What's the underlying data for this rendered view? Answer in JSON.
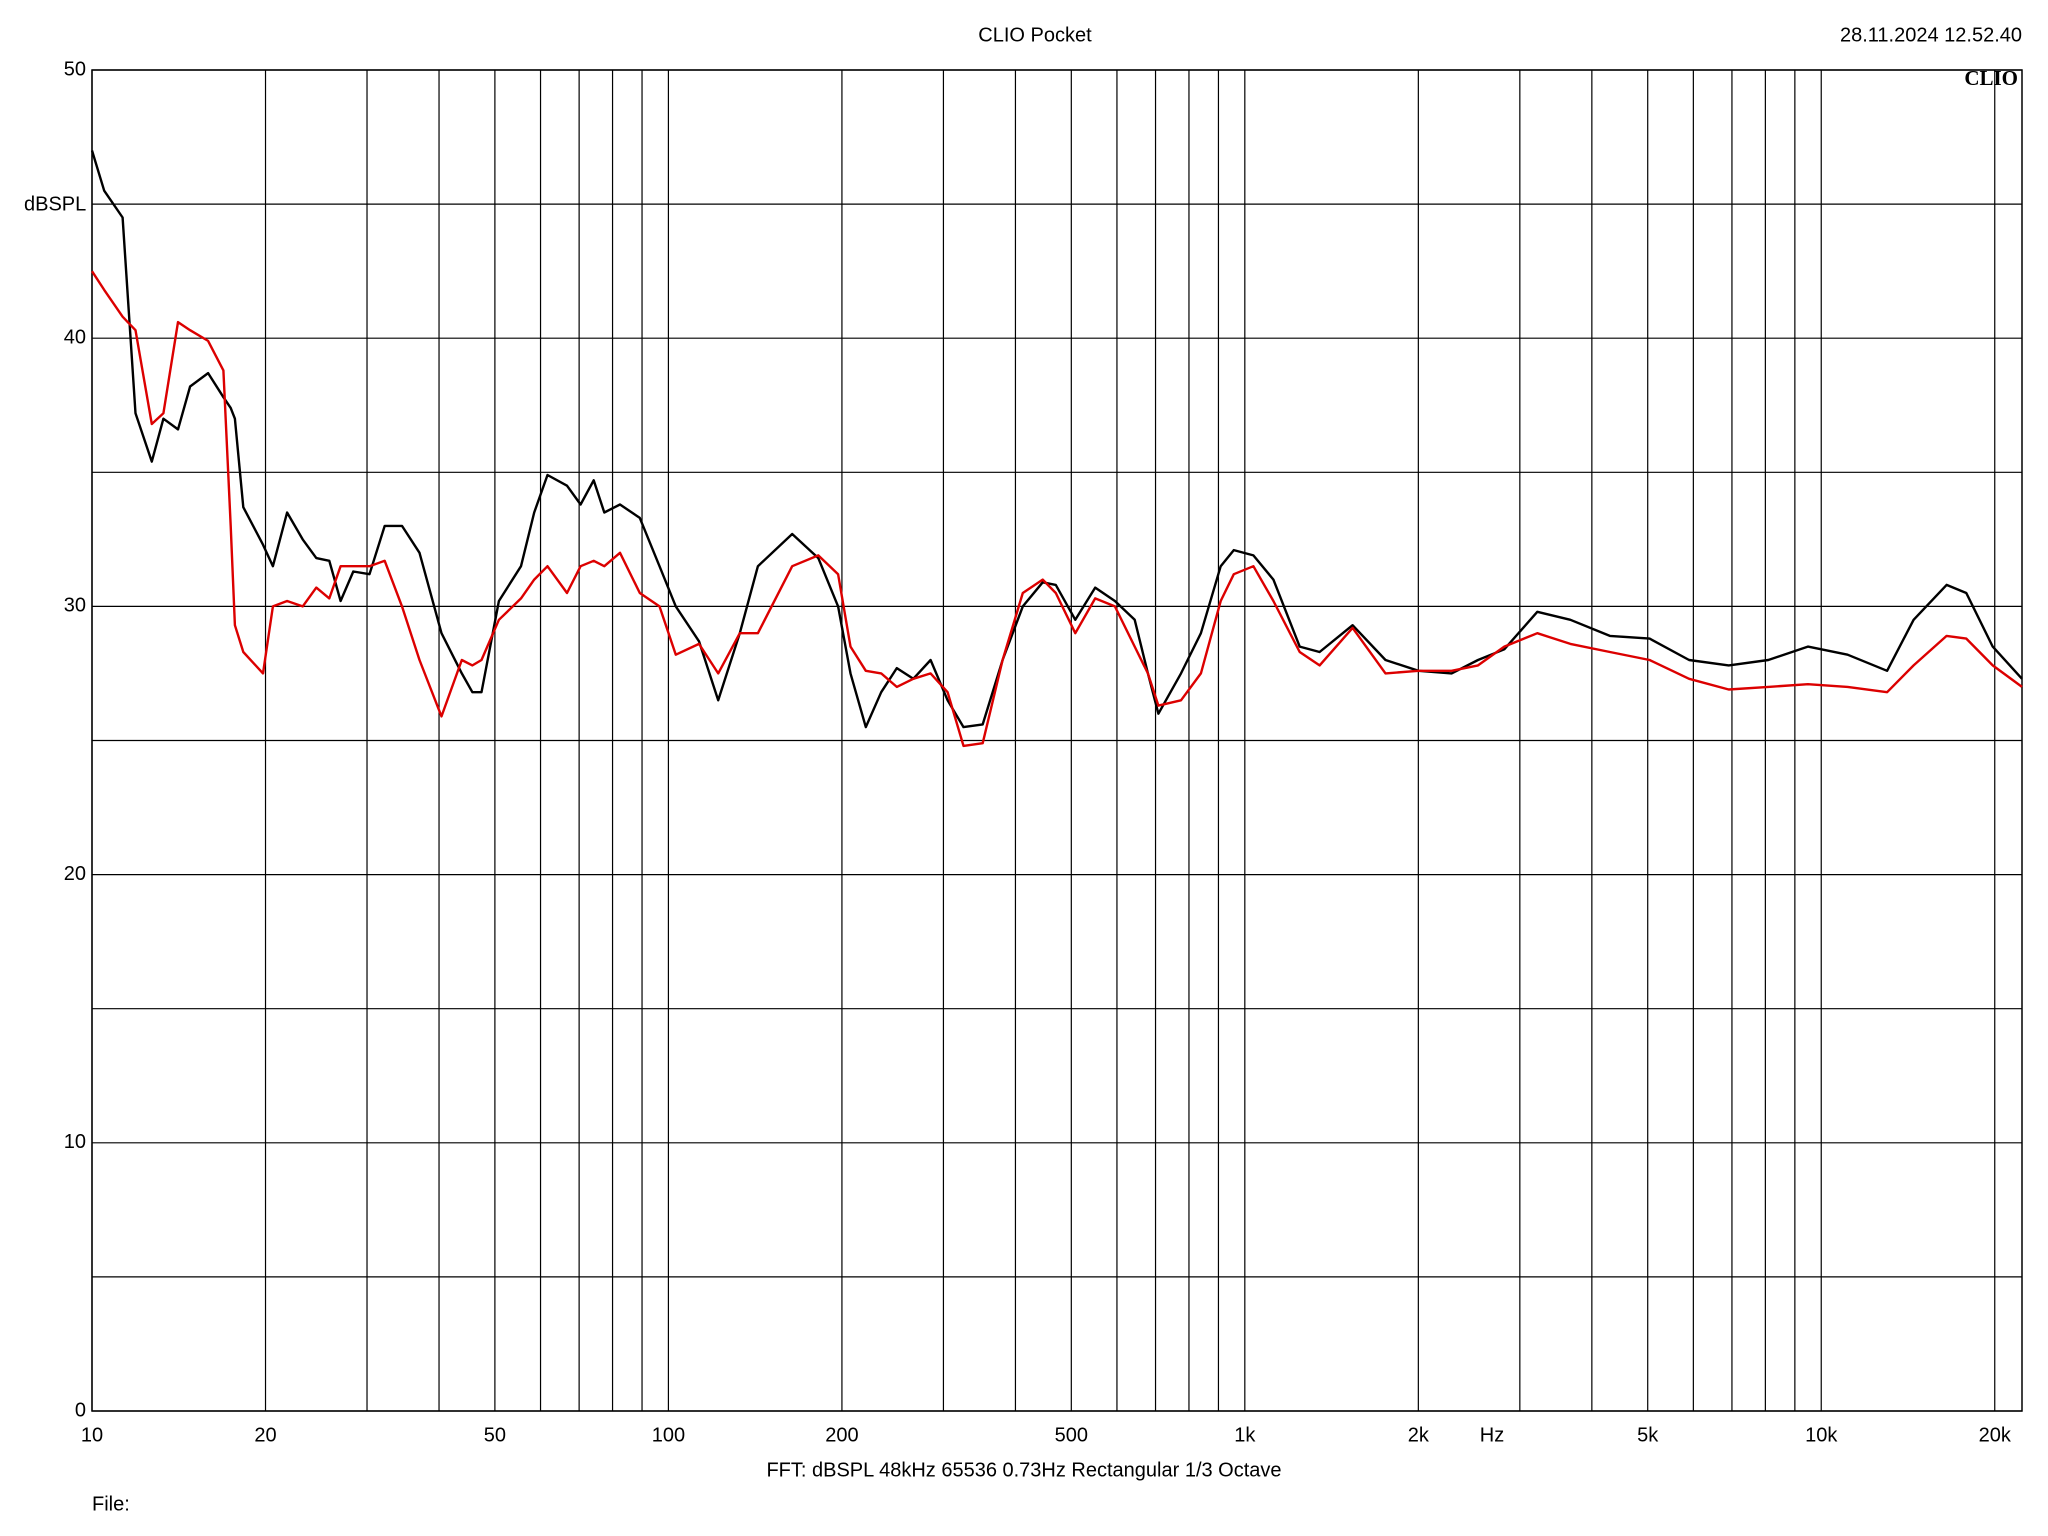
{
  "chart_data": {
    "type": "line",
    "title": "CLIO Pocket",
    "timestamp": "28.11.2024 12.52.40",
    "logo": "CLIO",
    "y_label": "dBSPL",
    "x_label": "Hz",
    "footer": "FFT:  dBSPL  48kHz  65536  0.73Hz  Rectangular  1/3 Octave",
    "file_label": "File:",
    "xscale": "log",
    "grid": true,
    "xlim": [
      10,
      22300
    ],
    "ylim": [
      0,
      50
    ],
    "xticks": [
      10,
      20,
      50,
      100,
      200,
      500,
      {
        "value": 1000,
        "label": "1k"
      },
      {
        "value": 2000,
        "label": "2k"
      },
      {
        "value": 5000,
        "label": "5k"
      },
      {
        "value": 10000,
        "label": "10k"
      },
      {
        "value": 20000,
        "label": "20k"
      }
    ],
    "xgrid_minor": [
      30,
      40,
      60,
      70,
      80,
      90,
      300,
      400,
      600,
      700,
      800,
      900,
      3000,
      4000,
      6000,
      7000,
      8000,
      9000
    ],
    "yticks": [
      0,
      10,
      20,
      30,
      40,
      50
    ],
    "ygrid_minor": [
      5,
      15,
      25,
      35,
      45
    ],
    "x": [
      10,
      10.5,
      11.3,
      11.9,
      12.7,
      13.3,
      14.1,
      14.8,
      15.9,
      16.9,
      17.4,
      17.7,
      18.3,
      19.8,
      20.6,
      21.8,
      23.2,
      24.5,
      25.8,
      27,
      28.4,
      30.3,
      32.2,
      34.5,
      37,
      40.4,
      43.8,
      45.7,
      47.4,
      50.8,
      55.5,
      58.5,
      61.7,
      66.7,
      70.4,
      74.2,
      77.4,
      82.4,
      89.2,
      96.5,
      103,
      113,
      122,
      133,
      143,
      164,
      182,
      197,
      207,
      220,
      234,
      249,
      266,
      285,
      305,
      325,
      351,
      380,
      412,
      446,
      470,
      508,
      550,
      595,
      644,
      679,
      708,
      775,
      839,
      908,
      957,
      1035,
      1121,
      1245,
      1348,
      1538,
      1754,
      2001,
      2284,
      2538,
      2819,
      3217,
      3671,
      4299,
      5038,
      5899,
      6910,
      8094,
      9483,
      11110,
      13010,
      14460,
      16500,
      17850,
      19840,
      22300
    ],
    "series": [
      {
        "color": "#000000",
        "values": [
          47,
          45.5,
          44.5,
          37.2,
          35.4,
          37,
          36.6,
          38.2,
          38.7,
          37.8,
          37.4,
          37,
          33.7,
          32.3,
          31.5,
          33.5,
          32.5,
          31.8,
          31.7,
          30.2,
          31.3,
          31.2,
          33,
          33,
          32,
          29,
          27.5,
          26.8,
          26.8,
          30.2,
          31.5,
          33.5,
          34.9,
          34.5,
          33.8,
          34.7,
          33.5,
          33.8,
          33.3,
          31.5,
          30,
          28.7,
          26.5,
          29,
          31.5,
          32.7,
          31.8,
          30,
          27.5,
          25.5,
          26.8,
          27.7,
          27.3,
          28,
          26.5,
          25.5,
          25.6,
          28,
          30,
          30.9,
          30.8,
          29.5,
          30.7,
          30.2,
          29.5,
          27.5,
          26,
          27.5,
          29,
          31.5,
          32.1,
          31.9,
          31,
          28.5,
          28.3,
          29.3,
          28,
          27.6,
          27.5,
          28,
          28.4,
          29.8,
          29.5,
          28.9,
          28.8,
          28,
          27.8,
          28,
          28.5,
          28.2,
          27.6,
          29.5,
          30.8,
          30.5,
          28.5,
          27.3
        ]
      },
      {
        "color": "#dc0000",
        "values": [
          42.5,
          41.8,
          40.8,
          40.3,
          36.8,
          37.2,
          40.6,
          40.3,
          39.9,
          38.8,
          33,
          29.3,
          28.3,
          27.5,
          30,
          30.2,
          30,
          30.7,
          30.3,
          31.5,
          31.5,
          31.5,
          31.7,
          30,
          28,
          25.9,
          28,
          27.8,
          28,
          29.5,
          30.3,
          31,
          31.5,
          30.5,
          31.5,
          31.7,
          31.5,
          32,
          30.5,
          30,
          28.2,
          28.6,
          27.5,
          29,
          29,
          31.5,
          31.9,
          31.2,
          28.5,
          27.6,
          27.5,
          27,
          27.3,
          27.5,
          26.8,
          24.8,
          24.9,
          28,
          30.5,
          31,
          30.5,
          29,
          30.3,
          30,
          28.5,
          27.5,
          26.3,
          26.5,
          27.5,
          30.2,
          31.2,
          31.5,
          30.2,
          28.3,
          27.8,
          29.2,
          27.5,
          27.6,
          27.6,
          27.8,
          28.5,
          29,
          28.6,
          28.3,
          28,
          27.3,
          26.9,
          27,
          27.1,
          27,
          26.8,
          27.8,
          28.9,
          28.8,
          27.8,
          27
        ]
      }
    ]
  }
}
